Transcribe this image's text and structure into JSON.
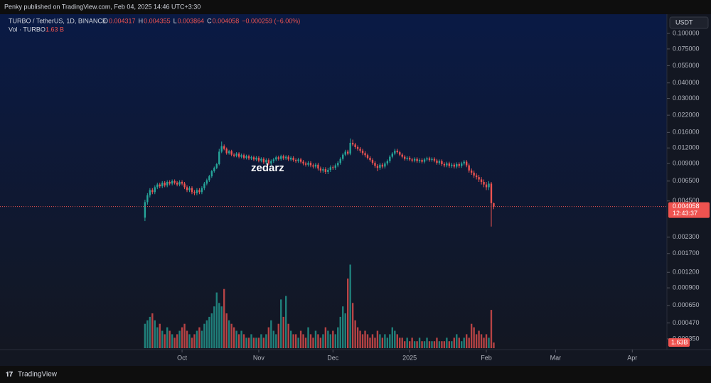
{
  "header": {
    "published": "Penky published on TradingView.com, Feb 04, 2025 14:46 UTC+3:30"
  },
  "footer": {
    "brand": "TradingView"
  },
  "chart_data": {
    "type": "candlestick",
    "legend": {
      "symbol": "TURBO / TetherUS, 1D, BINANCE",
      "ohlc": [
        {
          "label": "O",
          "value": "0.004317"
        },
        {
          "label": "H",
          "value": "0.004355"
        },
        {
          "label": "L",
          "value": "0.003864"
        },
        {
          "label": "C",
          "value": "0.004058"
        }
      ],
      "change": "−0.000259 (−6.00%)",
      "volume_name": "Vol · TURBO",
      "volume_value": "1.63 B"
    },
    "currency": "USDT",
    "watermark": "zedarz",
    "last_price_label": "0.004058",
    "countdown": "12:43:37",
    "last_volume_label": "1.63B",
    "up_color": "#26a69a",
    "down_color": "#ef5350",
    "log_scale": true,
    "xlim": [
      -73.6,
      196
    ],
    "xticks": [
      {
        "value": 0,
        "label": "Oct"
      },
      {
        "value": 31,
        "label": "Nov"
      },
      {
        "value": 61,
        "label": "Dec"
      },
      {
        "value": 92,
        "label": "2025"
      },
      {
        "value": 123,
        "label": "Feb"
      },
      {
        "value": 151,
        "label": "Mar"
      },
      {
        "value": 182,
        "label": "Apr"
      }
    ],
    "ylim": [
      0.000287,
      0.139
    ],
    "yticks": [
      {
        "value": 0.1,
        "label": "0.100000"
      },
      {
        "value": 0.075,
        "label": "0.075000"
      },
      {
        "value": 0.055,
        "label": "0.055000"
      },
      {
        "value": 0.04,
        "label": "0.040000"
      },
      {
        "value": 0.03,
        "label": "0.030000"
      },
      {
        "value": 0.022,
        "label": "0.022000"
      },
      {
        "value": 0.016,
        "label": "0.016000"
      },
      {
        "value": 0.012,
        "label": "0.012000"
      },
      {
        "value": 0.009,
        "label": "0.009000"
      },
      {
        "value": 0.0065,
        "label": "0.006500"
      },
      {
        "value": 0.0045,
        "label": "0.004500"
      },
      {
        "value": 0.0023,
        "label": "0.002300"
      },
      {
        "value": 0.0017,
        "label": "0.001700"
      },
      {
        "value": 0.0012,
        "label": "0.001200"
      },
      {
        "value": 0.0009,
        "label": "0.000900"
      },
      {
        "value": 0.00065,
        "label": "0.000650"
      },
      {
        "value": 0.00047,
        "label": "0.000470"
      },
      {
        "value": 0.00035,
        "label": "0.000350"
      }
    ],
    "volume_lim": [
      0,
      40
    ],
    "x": [
      -15,
      -14,
      -13,
      -12,
      -11,
      -10,
      -9,
      -8,
      -7,
      -6,
      -5,
      -4,
      -3,
      -2,
      -1,
      0,
      1,
      2,
      3,
      4,
      5,
      6,
      7,
      8,
      9,
      10,
      11,
      12,
      13,
      14,
      15,
      16,
      17,
      18,
      19,
      20,
      21,
      22,
      23,
      24,
      25,
      26,
      27,
      28,
      29,
      30,
      31,
      32,
      33,
      34,
      35,
      36,
      37,
      38,
      39,
      40,
      41,
      42,
      43,
      44,
      45,
      46,
      47,
      48,
      49,
      50,
      51,
      52,
      53,
      54,
      55,
      56,
      57,
      58,
      59,
      60,
      61,
      62,
      63,
      64,
      65,
      66,
      67,
      68,
      69,
      70,
      71,
      72,
      73,
      74,
      75,
      76,
      77,
      78,
      79,
      80,
      81,
      82,
      83,
      84,
      85,
      86,
      87,
      88,
      89,
      90,
      91,
      92,
      93,
      94,
      95,
      96,
      97,
      98,
      99,
      100,
      101,
      102,
      103,
      104,
      105,
      106,
      107,
      108,
      109,
      110,
      111,
      112,
      113,
      114,
      115,
      116,
      117,
      118,
      119,
      120,
      121,
      122,
      123,
      124,
      125,
      126
    ],
    "open": [
      0.0033,
      0.0044,
      0.005,
      0.0055,
      0.0053,
      0.0058,
      0.0061,
      0.0059,
      0.0063,
      0.006,
      0.0064,
      0.0062,
      0.0065,
      0.0063,
      0.0061,
      0.0064,
      0.0062,
      0.0058,
      0.0055,
      0.0057,
      0.0053,
      0.0052,
      0.0055,
      0.0053,
      0.0057,
      0.0062,
      0.0066,
      0.0071,
      0.0078,
      0.0083,
      0.0089,
      0.0112,
      0.0124,
      0.0118,
      0.0109,
      0.0113,
      0.0106,
      0.0104,
      0.0108,
      0.0102,
      0.0105,
      0.01,
      0.0103,
      0.0099,
      0.0101,
      0.0097,
      0.01,
      0.0095,
      0.0098,
      0.0092,
      0.0096,
      0.009,
      0.0094,
      0.0097,
      0.0101,
      0.0098,
      0.0103,
      0.0099,
      0.0102,
      0.0097,
      0.01,
      0.0096,
      0.0094,
      0.0097,
      0.0093,
      0.009,
      0.0088,
      0.0091,
      0.0087,
      0.0085,
      0.0088,
      0.0082,
      0.0079,
      0.0081,
      0.0077,
      0.008,
      0.0084,
      0.0083,
      0.0087,
      0.0091,
      0.0098,
      0.0106,
      0.0112,
      0.0108,
      0.0132,
      0.0128,
      0.0122,
      0.0118,
      0.0114,
      0.0109,
      0.0105,
      0.01,
      0.0096,
      0.0091,
      0.0086,
      0.0083,
      0.0088,
      0.0085,
      0.009,
      0.0094,
      0.0102,
      0.0108,
      0.0114,
      0.0111,
      0.0106,
      0.0102,
      0.0098,
      0.01,
      0.0097,
      0.0095,
      0.0098,
      0.0094,
      0.0096,
      0.0093,
      0.0097,
      0.0099,
      0.0096,
      0.0098,
      0.0095,
      0.0091,
      0.0094,
      0.0089,
      0.0087,
      0.009,
      0.0086,
      0.0088,
      0.0085,
      0.0089,
      0.0086,
      0.009,
      0.0093,
      0.0087,
      0.0079,
      0.0076,
      0.0072,
      0.007,
      0.0067,
      0.0064,
      0.0061,
      0.0058,
      0.0062,
      0.004317
    ],
    "high": [
      0.0046,
      0.0052,
      0.0057,
      0.0057,
      0.006,
      0.0063,
      0.0063,
      0.0065,
      0.0065,
      0.0066,
      0.0066,
      0.0067,
      0.0067,
      0.0065,
      0.0066,
      0.0066,
      0.0064,
      0.006,
      0.0059,
      0.0059,
      0.0055,
      0.0057,
      0.0057,
      0.0059,
      0.0064,
      0.0068,
      0.0073,
      0.008,
      0.0085,
      0.0091,
      0.0118,
      0.0135,
      0.0128,
      0.0121,
      0.0116,
      0.0116,
      0.0109,
      0.0111,
      0.0111,
      0.0108,
      0.0108,
      0.0106,
      0.0106,
      0.0104,
      0.0104,
      0.0103,
      0.0103,
      0.0101,
      0.0101,
      0.0099,
      0.0099,
      0.0097,
      0.01,
      0.0104,
      0.0104,
      0.0106,
      0.0106,
      0.0105,
      0.0105,
      0.0103,
      0.0103,
      0.0099,
      0.01,
      0.01,
      0.0096,
      0.0093,
      0.0094,
      0.0094,
      0.009,
      0.0091,
      0.0091,
      0.0085,
      0.0084,
      0.0084,
      0.0083,
      0.0087,
      0.0087,
      0.009,
      0.0094,
      0.0101,
      0.0109,
      0.0116,
      0.0116,
      0.0143,
      0.014,
      0.0132,
      0.0126,
      0.0122,
      0.0118,
      0.0113,
      0.0108,
      0.0103,
      0.0099,
      0.0094,
      0.0089,
      0.0091,
      0.0091,
      0.0093,
      0.0097,
      0.0105,
      0.0111,
      0.0118,
      0.0118,
      0.0114,
      0.0109,
      0.0105,
      0.0103,
      0.0103,
      0.01,
      0.0101,
      0.0101,
      0.0099,
      0.0099,
      0.01,
      0.0102,
      0.0102,
      0.0101,
      0.0101,
      0.0098,
      0.0097,
      0.0097,
      0.0092,
      0.0093,
      0.0093,
      0.0091,
      0.0091,
      0.0092,
      0.0092,
      0.0093,
      0.0096,
      0.0096,
      0.009,
      0.0082,
      0.0079,
      0.0075,
      0.0073,
      0.007,
      0.0067,
      0.0064,
      0.0065,
      0.0064,
      0.004355
    ],
    "low": [
      0.0031,
      0.0042,
      0.0048,
      0.0051,
      0.0051,
      0.0056,
      0.0057,
      0.0057,
      0.0058,
      0.0058,
      0.006,
      0.006,
      0.0061,
      0.0059,
      0.0059,
      0.006,
      0.0056,
      0.0053,
      0.0053,
      0.0051,
      0.005,
      0.005,
      0.0051,
      0.0051,
      0.0055,
      0.006,
      0.0064,
      0.0069,
      0.0076,
      0.0081,
      0.0087,
      0.0109,
      0.0115,
      0.0106,
      0.0106,
      0.0103,
      0.0101,
      0.0101,
      0.0099,
      0.0099,
      0.0097,
      0.0097,
      0.0096,
      0.0096,
      0.0094,
      0.0094,
      0.0092,
      0.0092,
      0.0089,
      0.0089,
      0.0087,
      0.0087,
      0.0091,
      0.0094,
      0.0095,
      0.0095,
      0.0096,
      0.0096,
      0.0094,
      0.0094,
      0.0093,
      0.0091,
      0.0091,
      0.009,
      0.0087,
      0.0085,
      0.0085,
      0.0084,
      0.0082,
      0.0082,
      0.0079,
      0.0076,
      0.0076,
      0.0074,
      0.0074,
      0.0077,
      0.008,
      0.008,
      0.0084,
      0.0088,
      0.0095,
      0.0103,
      0.0105,
      0.0105,
      0.0124,
      0.0118,
      0.0114,
      0.011,
      0.0105,
      0.0101,
      0.0097,
      0.0093,
      0.0088,
      0.0083,
      0.0078,
      0.008,
      0.0082,
      0.0082,
      0.0087,
      0.0091,
      0.0099,
      0.0105,
      0.0108,
      0.0103,
      0.0099,
      0.0095,
      0.0095,
      0.0094,
      0.0092,
      0.0092,
      0.0091,
      0.0091,
      0.009,
      0.009,
      0.0094,
      0.0093,
      0.0093,
      0.0092,
      0.0088,
      0.0088,
      0.0086,
      0.0084,
      0.0084,
      0.0083,
      0.0083,
      0.0082,
      0.0082,
      0.0083,
      0.0083,
      0.0087,
      0.0084,
      0.0076,
      0.0073,
      0.0069,
      0.0067,
      0.0064,
      0.0061,
      0.0058,
      0.0055,
      0.0055,
      0.0028,
      0.003864
    ],
    "close": [
      0.0044,
      0.005,
      0.0055,
      0.0053,
      0.0058,
      0.0061,
      0.0059,
      0.0063,
      0.006,
      0.0064,
      0.0062,
      0.0065,
      0.0063,
      0.0061,
      0.0064,
      0.0062,
      0.0058,
      0.0055,
      0.0057,
      0.0053,
      0.0052,
      0.0055,
      0.0053,
      0.0057,
      0.0062,
      0.0066,
      0.0071,
      0.0078,
      0.0083,
      0.0089,
      0.0112,
      0.0124,
      0.0118,
      0.0109,
      0.0113,
      0.0106,
      0.0104,
      0.0108,
      0.0102,
      0.0105,
      0.01,
      0.0103,
      0.0099,
      0.0101,
      0.0097,
      0.01,
      0.0095,
      0.0098,
      0.0092,
      0.0096,
      0.009,
      0.0094,
      0.0097,
      0.0101,
      0.0098,
      0.0103,
      0.0099,
      0.0102,
      0.0097,
      0.01,
      0.0096,
      0.0094,
      0.0097,
      0.0093,
      0.009,
      0.0088,
      0.0091,
      0.0087,
      0.0085,
      0.0088,
      0.0082,
      0.0079,
      0.0081,
      0.0077,
      0.008,
      0.0084,
      0.0083,
      0.0087,
      0.0091,
      0.0098,
      0.0106,
      0.0112,
      0.0108,
      0.0132,
      0.0128,
      0.0122,
      0.0118,
      0.0114,
      0.0109,
      0.0105,
      0.01,
      0.0096,
      0.0091,
      0.0086,
      0.0083,
      0.0088,
      0.0085,
      0.009,
      0.0094,
      0.0102,
      0.0108,
      0.0114,
      0.0111,
      0.0106,
      0.0102,
      0.0098,
      0.01,
      0.0097,
      0.0095,
      0.0098,
      0.0094,
      0.0096,
      0.0093,
      0.0097,
      0.0099,
      0.0096,
      0.0098,
      0.0095,
      0.0091,
      0.0094,
      0.0089,
      0.0087,
      0.009,
      0.0086,
      0.0088,
      0.0085,
      0.0089,
      0.0086,
      0.009,
      0.0093,
      0.0087,
      0.0079,
      0.0076,
      0.0072,
      0.007,
      0.0067,
      0.0064,
      0.0061,
      0.0058,
      0.0062,
      0.004317,
      0.004058
    ],
    "volume": [
      7,
      8,
      9,
      10,
      8,
      6,
      7,
      5,
      4,
      6,
      5,
      4,
      3,
      4,
      5,
      6,
      7,
      5,
      4,
      3,
      4,
      5,
      6,
      5,
      7,
      8,
      9,
      10,
      12,
      16,
      13,
      12,
      17,
      10,
      8,
      7,
      6,
      5,
      4,
      5,
      4,
      3,
      3,
      4,
      3,
      3,
      3,
      4,
      3,
      4,
      6,
      8,
      5,
      4,
      7,
      14,
      9,
      15,
      7,
      5,
      4,
      4,
      3,
      5,
      4,
      3,
      6,
      4,
      3,
      5,
      4,
      3,
      4,
      6,
      5,
      4,
      5,
      4,
      6,
      9,
      12,
      10,
      20,
      24,
      13,
      8,
      6,
      5,
      4,
      5,
      4,
      3,
      4,
      3,
      5,
      4,
      3,
      4,
      3,
      4,
      6,
      5,
      4,
      3,
      3,
      2,
      3,
      2,
      3,
      2,
      2,
      3,
      2,
      2,
      3,
      2,
      2,
      2,
      3,
      2,
      2,
      2,
      3,
      2,
      2,
      3,
      4,
      3,
      2,
      3,
      4,
      3,
      7,
      6,
      4,
      5,
      4,
      3,
      4,
      3,
      11,
      1.63
    ]
  }
}
